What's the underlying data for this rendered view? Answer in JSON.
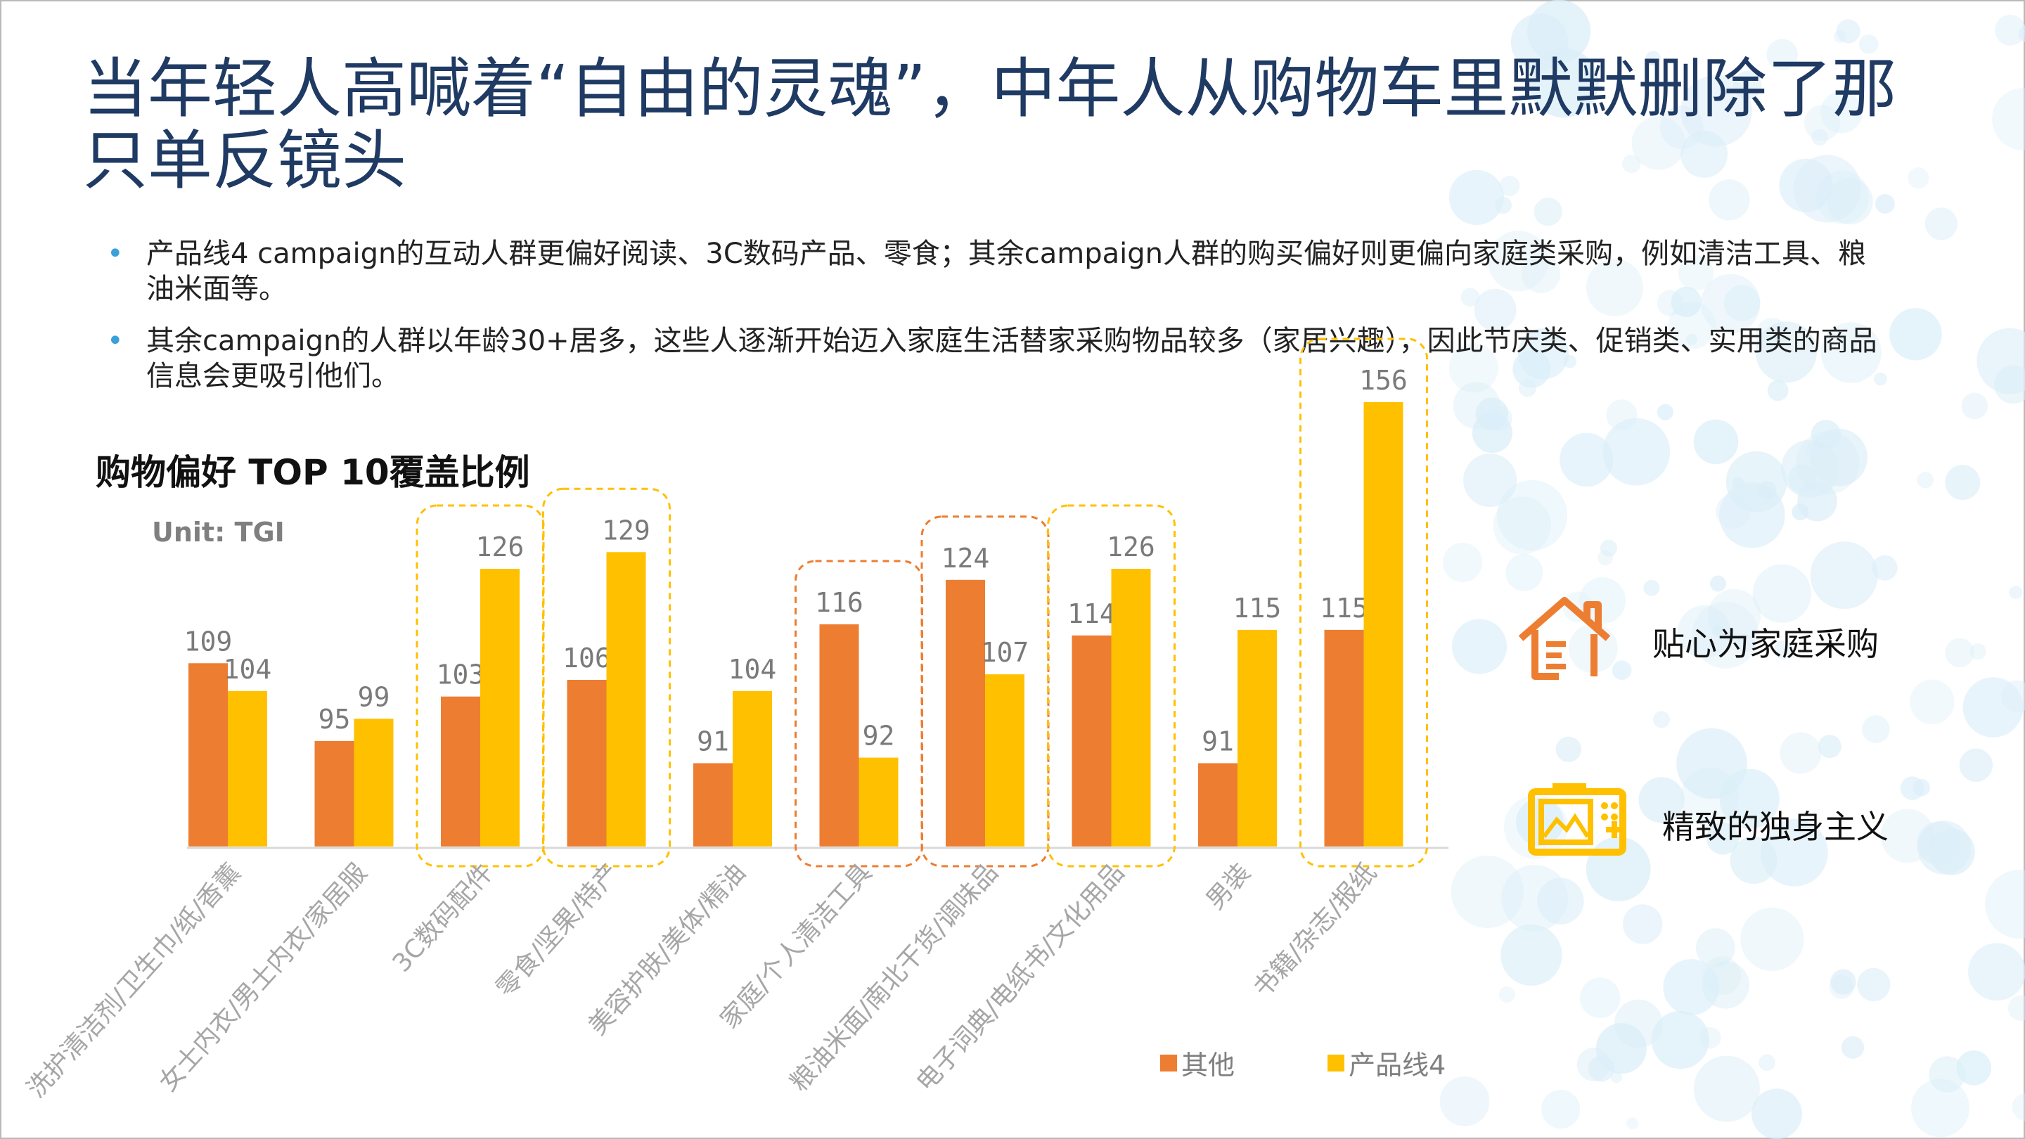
{
  "title": "当年轻人高喊着“自由的灵魂”，中年人从购物车里默默删除了那只单反镜头",
  "bullets": [
    "产品线4 campaign的互动人群更偏好阅读、3C数码产品、零食；其余campaign人群的购买偏好则更偏向家庭类采购，例如清洁工具、粮油米面等。",
    "其余campaign的人群以年龄30+居多，这些人逐渐开始迈入家庭生活替家采购物品较多（家居兴趣），因此节庆类、促销类、实用类的商品信息会更吸引他们。"
  ],
  "side_notes": [
    {
      "label": "贴心为家庭采购",
      "icon": "house-icon"
    },
    {
      "label": "精致的独身主义",
      "icon": "camera-icon"
    }
  ],
  "colors": {
    "title": "#1f3a63",
    "bullet": "#3aa0d8",
    "other": "#ed7d31",
    "line4": "#ffc000",
    "dots": "#dbeef8"
  },
  "chart_data": {
    "type": "bar",
    "title": "购物偏好 TOP 10覆盖比例",
    "unit_label": "Unit: TGI",
    "categories": [
      "洗护清洁剂/卫生巾/纸/香薰",
      "女士内衣/男士内衣/家居服",
      "3C数码配件",
      "零食/坚果/特产",
      "美容护肤/美体/精油",
      "家庭/个人清洁工具",
      "粮油米面/南北干货/调味品",
      "电子词典/电纸书/文化用品",
      "男装",
      "书籍/杂志/报纸"
    ],
    "series": [
      {
        "name": "其他",
        "values": [
          109,
          95,
          103,
          106,
          91,
          116,
          124,
          114,
          91,
          115
        ]
      },
      {
        "name": "产品线4",
        "values": [
          104,
          99,
          126,
          129,
          104,
          92,
          107,
          126,
          115,
          156
        ]
      }
    ],
    "highlights": [
      {
        "category": "3C数码配件",
        "style": "yellow-dashed"
      },
      {
        "category": "零食/坚果/特产",
        "style": "yellow-dashed"
      },
      {
        "category": "家庭/个人清洁工具",
        "style": "orange-dashed"
      },
      {
        "category": "粮油米面/南北干货/调味品",
        "style": "orange-dashed"
      },
      {
        "category": "电子词典/电纸书/文化用品",
        "style": "yellow-dashed"
      },
      {
        "category": "书籍/杂志/报纸",
        "style": "yellow-dashed"
      }
    ],
    "legend": "bottom"
  }
}
